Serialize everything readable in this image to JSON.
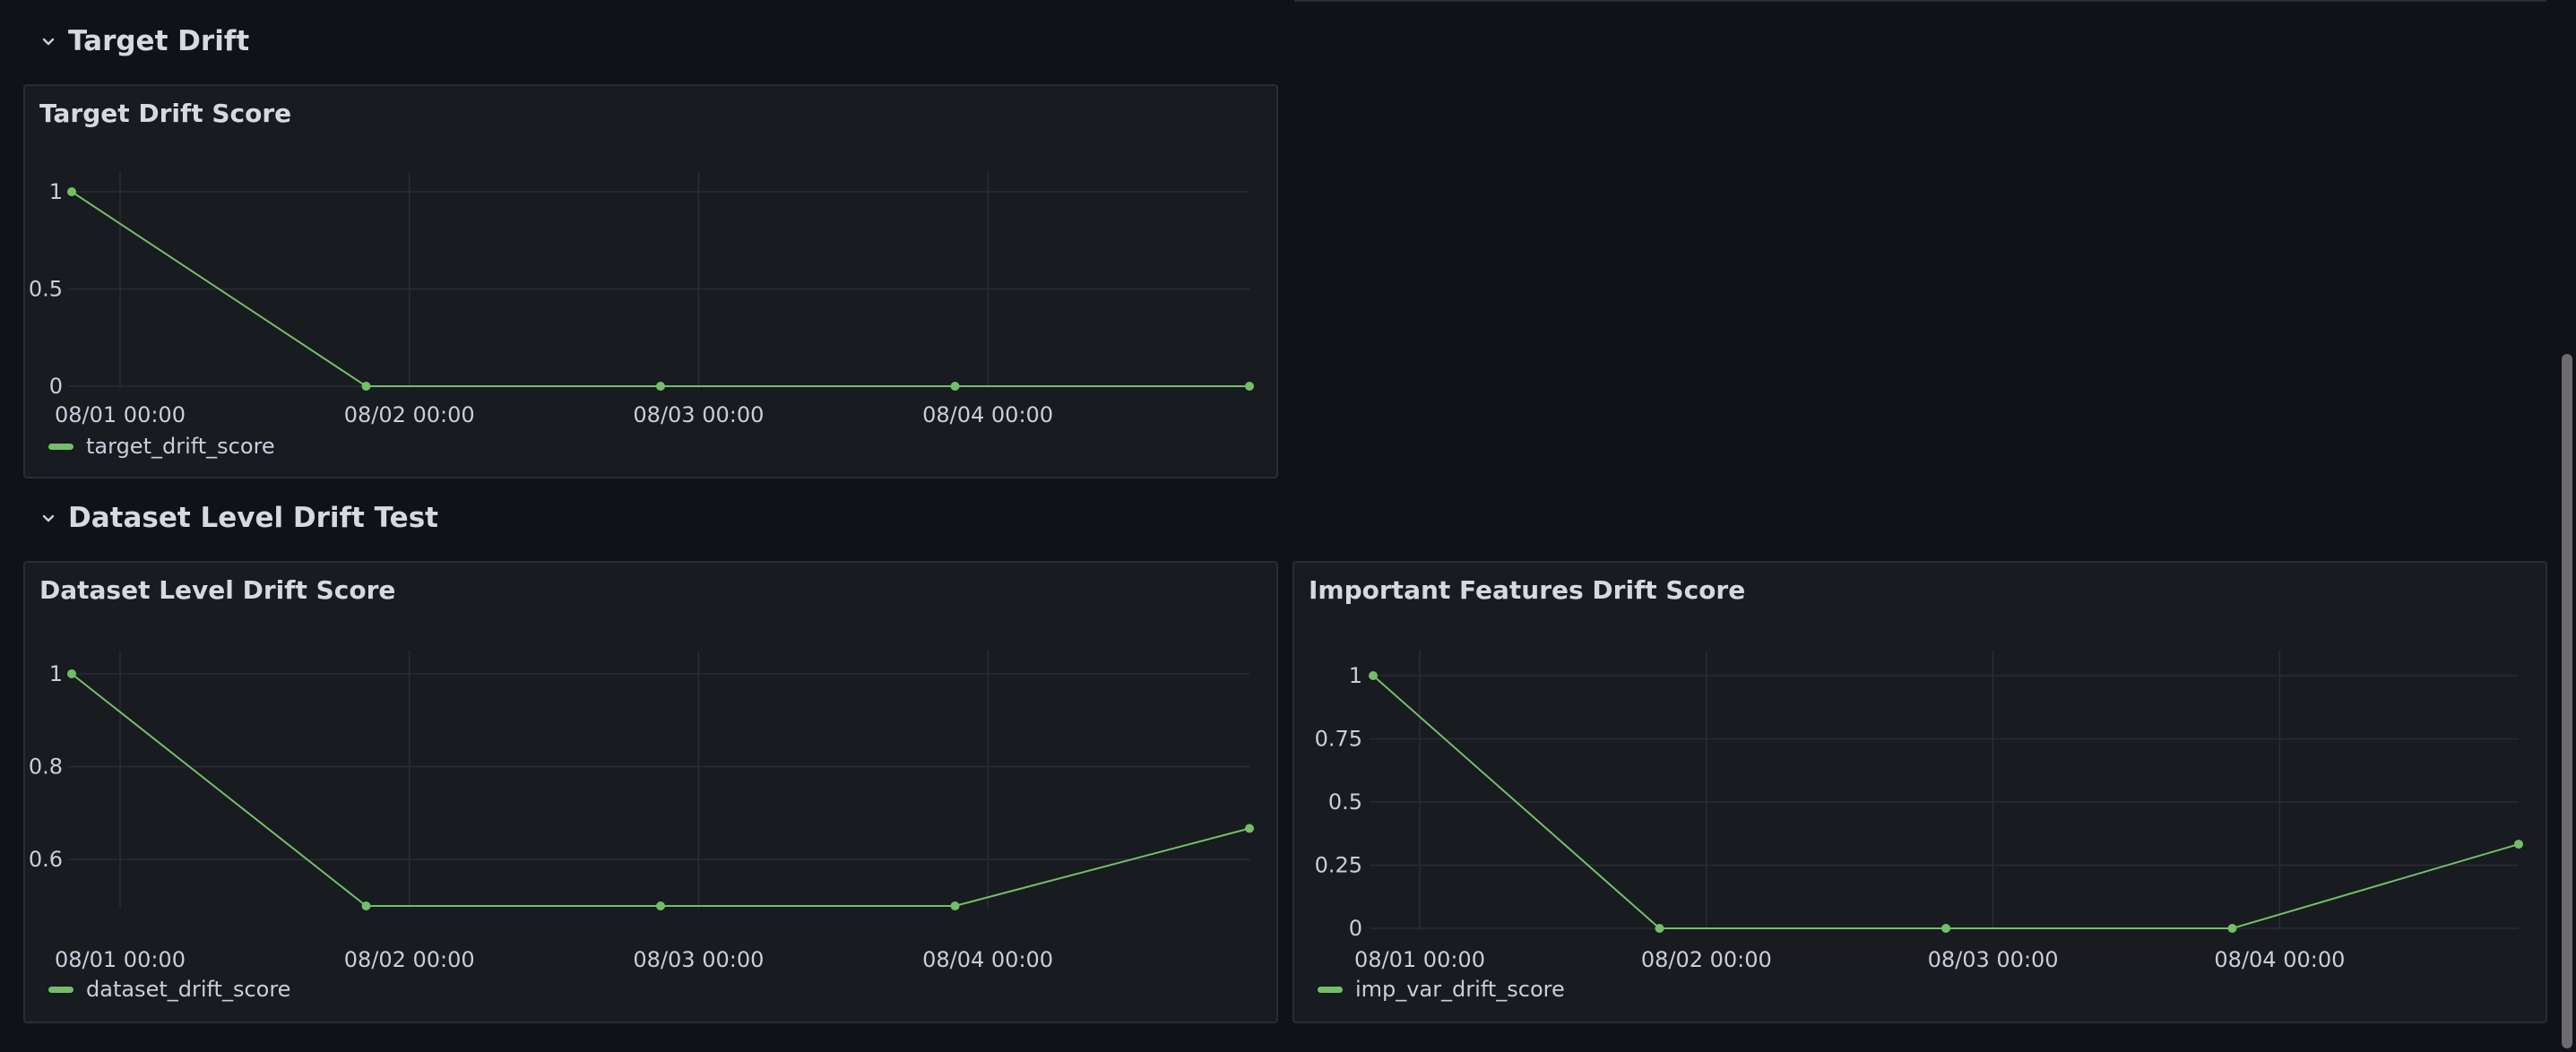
{
  "rows": [
    {
      "title": "Target Drift",
      "collapsed": false
    },
    {
      "title": "Dataset Level Drift Test",
      "collapsed": false
    }
  ],
  "colors": {
    "series": "#73bf69",
    "background": "#111217",
    "panel": "#181b1f",
    "grid": "#2b2d33",
    "text": "#ccccdc"
  },
  "panels": [
    {
      "title": "Target Drift Score",
      "legend": "target_drift_score"
    },
    {
      "title": "Dataset Level Drift Score",
      "legend": "dataset_drift_score"
    },
    {
      "title": "Important Features Drift Score",
      "legend": "imp_var_drift_score"
    }
  ],
  "chart_data": [
    {
      "type": "line",
      "title": "Target Drift Score",
      "x": [
        "08/01",
        "08/02",
        "08/03",
        "08/04",
        "08/05"
      ],
      "x_ticks": [
        "08/01 00:00",
        "08/02 00:00",
        "08/03 00:00",
        "08/04 00:00"
      ],
      "y_ticks": [
        "1",
        "0.5",
        "0"
      ],
      "ylim": [
        0,
        1
      ],
      "series": [
        {
          "name": "target_drift_score",
          "values": [
            1,
            0,
            0,
            0,
            0
          ]
        }
      ],
      "grid": true,
      "legend": "bottom-left"
    },
    {
      "type": "line",
      "title": "Dataset Level Drift Score",
      "x": [
        "08/01",
        "08/02",
        "08/03",
        "08/04",
        "08/05"
      ],
      "x_ticks": [
        "08/01 00:00",
        "08/02 00:00",
        "08/03 00:00",
        "08/04 00:00"
      ],
      "y_ticks": [
        "1",
        "0.8",
        "0.6"
      ],
      "ylim": [
        0.5,
        1
      ],
      "series": [
        {
          "name": "dataset_drift_score",
          "values": [
            1,
            0.5,
            0.5,
            0.5,
            0.667
          ]
        }
      ],
      "grid": true,
      "legend": "bottom-left"
    },
    {
      "type": "line",
      "title": "Important Features Drift Score",
      "x": [
        "08/01",
        "08/02",
        "08/03",
        "08/04",
        "08/05"
      ],
      "x_ticks": [
        "08/01 00:00",
        "08/02 00:00",
        "08/03 00:00",
        "08/04 00:00"
      ],
      "y_ticks": [
        "1",
        "0.75",
        "0.5",
        "0.25",
        "0"
      ],
      "ylim": [
        0,
        1
      ],
      "series": [
        {
          "name": "imp_var_drift_score",
          "values": [
            1,
            0,
            0,
            0,
            0.333
          ]
        }
      ],
      "grid": true,
      "legend": "bottom-left"
    }
  ]
}
